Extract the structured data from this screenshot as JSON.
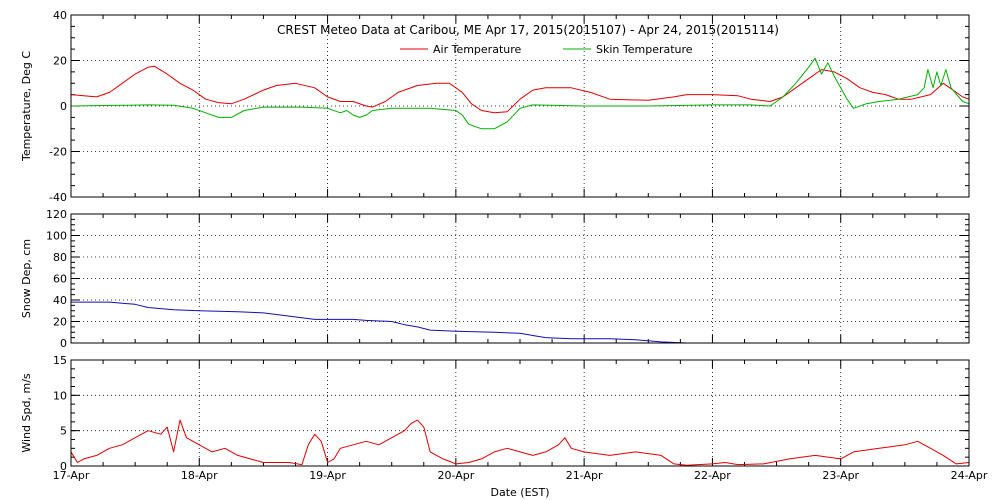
{
  "chart_data": {
    "type": "line",
    "title": "CREST Meteo Data at Caribou, ME   Apr 17, 2015(2015107) - Apr 24, 2015(2015114)",
    "xlabel": "Date (EST)",
    "x_ticks": [
      "17-Apr",
      "18-Apr",
      "19-Apr",
      "20-Apr",
      "21-Apr",
      "22-Apr",
      "23-Apr",
      "24-Apr"
    ],
    "xlim_days": [
      0,
      7
    ],
    "grid": true,
    "panels": [
      {
        "id": "temperature",
        "ylabel": "Temperature, Deg C",
        "ylim": [
          -40,
          40
        ],
        "yticks": [
          -40,
          -20,
          0,
          20,
          40
        ],
        "legend": "top-center",
        "series": [
          {
            "name": "Air Temperature",
            "color": "#e00000",
            "points": [
              [
                0,
                5
              ],
              [
                0.1,
                4.5
              ],
              [
                0.2,
                4
              ],
              [
                0.3,
                6
              ],
              [
                0.4,
                10
              ],
              [
                0.5,
                14
              ],
              [
                0.6,
                17
              ],
              [
                0.65,
                17.5
              ],
              [
                0.75,
                14
              ],
              [
                0.85,
                10
              ],
              [
                0.95,
                7
              ],
              [
                1.05,
                3
              ],
              [
                1.15,
                1.5
              ],
              [
                1.25,
                1
              ],
              [
                1.35,
                3
              ],
              [
                1.5,
                7
              ],
              [
                1.6,
                9
              ],
              [
                1.75,
                10
              ],
              [
                1.9,
                8
              ],
              [
                2.0,
                4
              ],
              [
                2.1,
                2
              ],
              [
                2.2,
                2
              ],
              [
                2.3,
                0
              ],
              [
                2.35,
                -0.5
              ],
              [
                2.45,
                2
              ],
              [
                2.55,
                6
              ],
              [
                2.7,
                9
              ],
              [
                2.85,
                10
              ],
              [
                2.95,
                10
              ],
              [
                3.05,
                6
              ],
              [
                3.12,
                1
              ],
              [
                3.2,
                -2
              ],
              [
                3.3,
                -3
              ],
              [
                3.4,
                -2.5
              ],
              [
                3.5,
                3
              ],
              [
                3.6,
                7
              ],
              [
                3.7,
                8
              ],
              [
                3.9,
                8
              ],
              [
                4.05,
                6
              ],
              [
                4.2,
                3
              ],
              [
                4.5,
                2.5
              ],
              [
                4.7,
                4
              ],
              [
                4.8,
                5
              ],
              [
                5.0,
                5
              ],
              [
                5.2,
                4.5
              ],
              [
                5.3,
                3
              ],
              [
                5.45,
                2
              ],
              [
                5.55,
                4
              ],
              [
                5.65,
                8
              ],
              [
                5.75,
                12
              ],
              [
                5.85,
                16
              ],
              [
                5.95,
                15
              ],
              [
                6.05,
                12
              ],
              [
                6.15,
                8
              ],
              [
                6.25,
                6
              ],
              [
                6.35,
                5
              ],
              [
                6.45,
                3
              ],
              [
                6.55,
                3
              ],
              [
                6.7,
                5
              ],
              [
                6.8,
                10
              ],
              [
                6.85,
                8
              ],
              [
                6.95,
                4
              ],
              [
                7.0,
                3
              ]
            ]
          },
          {
            "name": "Skin Temperature",
            "color": "#00b000",
            "points": [
              [
                0,
                0
              ],
              [
                0.4,
                0.3
              ],
              [
                0.6,
                0.5
              ],
              [
                0.8,
                0.3
              ],
              [
                0.95,
                -1
              ],
              [
                1.05,
                -3
              ],
              [
                1.15,
                -5
              ],
              [
                1.25,
                -5
              ],
              [
                1.35,
                -2
              ],
              [
                1.5,
                -0.5
              ],
              [
                1.8,
                -0.5
              ],
              [
                2.0,
                -1
              ],
              [
                2.1,
                -3
              ],
              [
                2.15,
                -2
              ],
              [
                2.2,
                -4
              ],
              [
                2.25,
                -5
              ],
              [
                2.3,
                -4
              ],
              [
                2.35,
                -2
              ],
              [
                2.5,
                -1
              ],
              [
                2.8,
                -1
              ],
              [
                3.0,
                -2
              ],
              [
                3.05,
                -4
              ],
              [
                3.1,
                -8
              ],
              [
                3.2,
                -10
              ],
              [
                3.3,
                -10
              ],
              [
                3.4,
                -7
              ],
              [
                3.5,
                -1
              ],
              [
                3.6,
                0.5
              ],
              [
                4.0,
                0
              ],
              [
                4.5,
                0
              ],
              [
                5.0,
                0.5
              ],
              [
                5.3,
                0.5
              ],
              [
                5.45,
                0
              ],
              [
                5.55,
                4
              ],
              [
                5.65,
                10
              ],
              [
                5.75,
                17
              ],
              [
                5.8,
                21
              ],
              [
                5.85,
                14
              ],
              [
                5.9,
                19
              ],
              [
                5.95,
                13
              ],
              [
                6.0,
                8
              ],
              [
                6.05,
                3
              ],
              [
                6.1,
                -1
              ],
              [
                6.2,
                1
              ],
              [
                6.3,
                2
              ],
              [
                6.45,
                3
              ],
              [
                6.6,
                5
              ],
              [
                6.65,
                8
              ],
              [
                6.68,
                16
              ],
              [
                6.72,
                8
              ],
              [
                6.75,
                15
              ],
              [
                6.78,
                9
              ],
              [
                6.82,
                16
              ],
              [
                6.86,
                8
              ],
              [
                6.95,
                2
              ],
              [
                7.0,
                1
              ]
            ]
          }
        ]
      },
      {
        "id": "snow-depth",
        "ylabel": "Snow Dep, cm",
        "ylim": [
          0,
          120
        ],
        "yticks": [
          0,
          20,
          40,
          60,
          80,
          100,
          120
        ],
        "series": [
          {
            "name": "Snow Depth",
            "color": "#1010b0",
            "points": [
              [
                0,
                38
              ],
              [
                0.3,
                38
              ],
              [
                0.5,
                36
              ],
              [
                0.6,
                33
              ],
              [
                0.8,
                31
              ],
              [
                1.0,
                30
              ],
              [
                1.3,
                29
              ],
              [
                1.5,
                28
              ],
              [
                1.7,
                25
              ],
              [
                1.9,
                22
              ],
              [
                2.2,
                22
              ],
              [
                2.3,
                21
              ],
              [
                2.5,
                20
              ],
              [
                2.6,
                17
              ],
              [
                2.7,
                15
              ],
              [
                2.8,
                12
              ],
              [
                3.0,
                11
              ],
              [
                3.3,
                10
              ],
              [
                3.5,
                9
              ],
              [
                3.6,
                7
              ],
              [
                3.7,
                5
              ],
              [
                3.9,
                4
              ],
              [
                4.2,
                4
              ],
              [
                4.4,
                3
              ],
              [
                4.6,
                1
              ],
              [
                4.8,
                0
              ],
              [
                5.5,
                0
              ],
              [
                6.0,
                0
              ],
              [
                7.0,
                0
              ]
            ]
          }
        ]
      },
      {
        "id": "wind-speed",
        "ylabel": "Wind Spd, m/s",
        "ylim": [
          0,
          15
        ],
        "yticks": [
          0,
          5,
          10,
          15
        ],
        "series": [
          {
            "name": "Wind Speed",
            "color": "#e00000",
            "points": [
              [
                0,
                2
              ],
              [
                0.05,
                0.5
              ],
              [
                0.1,
                1
              ],
              [
                0.2,
                1.5
              ],
              [
                0.3,
                2.5
              ],
              [
                0.4,
                3
              ],
              [
                0.5,
                4
              ],
              [
                0.6,
                5
              ],
              [
                0.7,
                4.5
              ],
              [
                0.75,
                5.5
              ],
              [
                0.8,
                2
              ],
              [
                0.85,
                6.5
              ],
              [
                0.9,
                4
              ],
              [
                1.0,
                3
              ],
              [
                1.1,
                2
              ],
              [
                1.2,
                2.5
              ],
              [
                1.3,
                1.5
              ],
              [
                1.5,
                0.5
              ],
              [
                1.7,
                0.5
              ],
              [
                1.8,
                0.2
              ],
              [
                1.85,
                3
              ],
              [
                1.9,
                4.5
              ],
              [
                1.95,
                3.5
              ],
              [
                2.0,
                0.5
              ],
              [
                2.05,
                1
              ],
              [
                2.1,
                2.5
              ],
              [
                2.2,
                3
              ],
              [
                2.3,
                3.5
              ],
              [
                2.4,
                3
              ],
              [
                2.5,
                4
              ],
              [
                2.6,
                5
              ],
              [
                2.65,
                6
              ],
              [
                2.7,
                6.5
              ],
              [
                2.75,
                5.5
              ],
              [
                2.8,
                2
              ],
              [
                2.9,
                1
              ],
              [
                3.0,
                0.3
              ],
              [
                3.1,
                0.5
              ],
              [
                3.2,
                1
              ],
              [
                3.3,
                2
              ],
              [
                3.4,
                2.5
              ],
              [
                3.5,
                2
              ],
              [
                3.6,
                1.5
              ],
              [
                3.7,
                2
              ],
              [
                3.8,
                3
              ],
              [
                3.85,
                4
              ],
              [
                3.9,
                2.5
              ],
              [
                4.0,
                2
              ],
              [
                4.2,
                1.5
              ],
              [
                4.4,
                2
              ],
              [
                4.6,
                1.5
              ],
              [
                4.7,
                0.3
              ],
              [
                4.8,
                0.1
              ],
              [
                5.0,
                0.3
              ],
              [
                5.1,
                0.5
              ],
              [
                5.2,
                0.2
              ],
              [
                5.4,
                0.3
              ],
              [
                5.6,
                1
              ],
              [
                5.8,
                1.5
              ],
              [
                6.0,
                1
              ],
              [
                6.1,
                2
              ],
              [
                6.3,
                2.5
              ],
              [
                6.5,
                3
              ],
              [
                6.6,
                3.5
              ],
              [
                6.7,
                2.5
              ],
              [
                6.8,
                1.5
              ],
              [
                6.9,
                0.3
              ],
              [
                7.0,
                0.5
              ]
            ]
          }
        ]
      }
    ]
  }
}
